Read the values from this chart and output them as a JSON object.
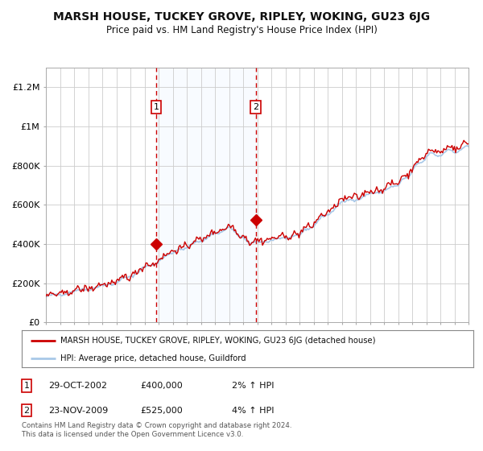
{
  "title": "MARSH HOUSE, TUCKEY GROVE, RIPLEY, WOKING, GU23 6JG",
  "subtitle": "Price paid vs. HM Land Registry's House Price Index (HPI)",
  "title_fontsize": 10,
  "subtitle_fontsize": 8.5,
  "bg_color": "#ffffff",
  "plot_bg_color": "#ffffff",
  "grid_color": "#cccccc",
  "year_start": 1995,
  "year_end": 2025,
  "ylim": [
    0,
    1300000
  ],
  "yticks": [
    0,
    200000,
    400000,
    600000,
    800000,
    1000000,
    1200000
  ],
  "ytick_labels": [
    "£0",
    "£200K",
    "£400K",
    "£600K",
    "£800K",
    "£1M",
    "£1.2M"
  ],
  "hpi_color": "#a8c8e8",
  "price_color": "#cc0000",
  "shade_color": "#ddeeff",
  "vline_color": "#cc0000",
  "purchase1_year": 2002.83,
  "purchase1_price": 400000,
  "purchase2_year": 2009.9,
  "purchase2_price": 525000,
  "legend_line1": "MARSH HOUSE, TUCKEY GROVE, RIPLEY, WOKING, GU23 6JG (detached house)",
  "legend_line2": "HPI: Average price, detached house, Guildford",
  "table_rows": [
    {
      "num": "1",
      "date": "29-OCT-2002",
      "price": "£400,000",
      "hpi": "2% ↑ HPI"
    },
    {
      "num": "2",
      "date": "23-NOV-2009",
      "price": "£525,000",
      "hpi": "4% ↑ HPI"
    }
  ],
  "footnote": "Contains HM Land Registry data © Crown copyright and database right 2024.\nThis data is licensed under the Open Government Licence v3.0."
}
